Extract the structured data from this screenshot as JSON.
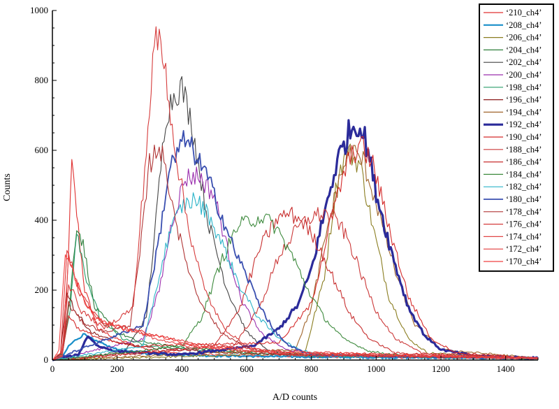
{
  "chart_data": {
    "type": "line",
    "title": "",
    "xlabel": "A/D counts",
    "ylabel": "Counts",
    "xlim": [
      0,
      1500
    ],
    "ylim": [
      0,
      1000
    ],
    "xticks": [
      "0",
      "200",
      "400",
      "600",
      "800",
      "1000",
      "1200",
      "1400"
    ],
    "yticks": [
      "0",
      "200",
      "400",
      "600",
      "800",
      "1000"
    ],
    "grid": false,
    "legend_position": "top-right",
    "series": [
      {
        "name": "‘210_ch4’",
        "color": "#e03030",
        "width": 1.1,
        "points": [
          [
            0,
            0
          ],
          [
            25,
            5
          ],
          [
            40,
            90
          ],
          [
            60,
            560
          ],
          [
            75,
            420
          ],
          [
            100,
            200
          ],
          [
            140,
            90
          ],
          [
            200,
            60
          ],
          [
            260,
            40
          ],
          [
            320,
            25
          ],
          [
            400,
            18
          ],
          [
            600,
            12
          ],
          [
            900,
            8
          ],
          [
            1500,
            5
          ]
        ]
      },
      {
        "name": "‘208_ch4’",
        "color": "#1a8fc9",
        "width": 2.2,
        "points": [
          [
            0,
            0
          ],
          [
            30,
            5
          ],
          [
            50,
            40
          ],
          [
            75,
            60
          ],
          [
            100,
            75
          ],
          [
            130,
            55
          ],
          [
            200,
            30
          ],
          [
            300,
            18
          ],
          [
            500,
            12
          ],
          [
            900,
            8
          ],
          [
            1500,
            5
          ]
        ]
      },
      {
        "name": "‘206_ch4’",
        "color": "#8a7d20",
        "width": 1.1,
        "points": [
          [
            0,
            0
          ],
          [
            780,
            20
          ],
          [
            840,
            240
          ],
          [
            880,
            520
          ],
          [
            910,
            600
          ],
          [
            950,
            560
          ],
          [
            990,
            380
          ],
          [
            1040,
            180
          ],
          [
            1100,
            60
          ],
          [
            1160,
            20
          ],
          [
            1500,
            5
          ]
        ]
      },
      {
        "name": "‘204_ch4’",
        "color": "#2e7d3a",
        "width": 1.1,
        "points": [
          [
            0,
            0
          ],
          [
            30,
            20
          ],
          [
            55,
            180
          ],
          [
            75,
            390
          ],
          [
            95,
            330
          ],
          [
            130,
            150
          ],
          [
            200,
            80
          ],
          [
            260,
            55
          ],
          [
            400,
            35
          ],
          [
            700,
            20
          ],
          [
            1500,
            5
          ]
        ]
      },
      {
        "name": "‘202_ch4’",
        "color": "#444444",
        "width": 1.1,
        "points": [
          [
            0,
            0
          ],
          [
            220,
            20
          ],
          [
            290,
            120
          ],
          [
            320,
            400
          ],
          [
            350,
            700
          ],
          [
            380,
            770
          ],
          [
            400,
            780
          ],
          [
            430,
            680
          ],
          [
            480,
            400
          ],
          [
            540,
            200
          ],
          [
            600,
            80
          ],
          [
            660,
            30
          ],
          [
            750,
            15
          ],
          [
            1500,
            5
          ]
        ]
      },
      {
        "name": "‘200_ch4’",
        "color": "#9b2fae",
        "width": 1.1,
        "points": [
          [
            0,
            0
          ],
          [
            280,
            60
          ],
          [
            330,
            200
          ],
          [
            370,
            400
          ],
          [
            410,
            520
          ],
          [
            450,
            530
          ],
          [
            500,
            470
          ],
          [
            540,
            320
          ],
          [
            580,
            180
          ],
          [
            640,
            80
          ],
          [
            720,
            30
          ],
          [
            850,
            12
          ],
          [
            1500,
            5
          ]
        ]
      },
      {
        "name": "‘198_ch4’",
        "color": "#2a9d6a",
        "width": 1.1,
        "points": [
          [
            0,
            0
          ],
          [
            30,
            15
          ],
          [
            55,
            150
          ],
          [
            75,
            380
          ],
          [
            100,
            250
          ],
          [
            150,
            110
          ],
          [
            220,
            60
          ],
          [
            300,
            40
          ],
          [
            500,
            25
          ],
          [
            800,
            12
          ],
          [
            1500,
            5
          ]
        ]
      },
      {
        "name": "‘196_ch4’",
        "color": "#8b1a1a",
        "width": 1.1,
        "points": [
          [
            0,
            0
          ],
          [
            25,
            20
          ],
          [
            45,
            200
          ],
          [
            70,
            140
          ],
          [
            120,
            80
          ],
          [
            200,
            50
          ],
          [
            300,
            35
          ],
          [
            600,
            18
          ],
          [
            1500,
            5
          ]
        ]
      },
      {
        "name": "‘194_ch4’",
        "color": "#a0642a",
        "width": 1.1,
        "points": [
          [
            0,
            0
          ],
          [
            750,
            30
          ],
          [
            800,
            150
          ],
          [
            850,
            380
          ],
          [
            890,
            530
          ],
          [
            920,
            600
          ],
          [
            960,
            570
          ],
          [
            1000,
            450
          ],
          [
            1060,
            250
          ],
          [
            1120,
            100
          ],
          [
            1200,
            30
          ],
          [
            1500,
            5
          ]
        ]
      },
      {
        "name": "‘192_ch4’",
        "color": "#2b2b9a",
        "width": 3.2,
        "points": [
          [
            0,
            0
          ],
          [
            80,
            15
          ],
          [
            110,
            70
          ],
          [
            140,
            40
          ],
          [
            200,
            25
          ],
          [
            400,
            15
          ],
          [
            620,
            40
          ],
          [
            700,
            90
          ],
          [
            760,
            160
          ],
          [
            800,
            260
          ],
          [
            840,
            420
          ],
          [
            880,
            570
          ],
          [
            920,
            660
          ],
          [
            945,
            680
          ],
          [
            970,
            620
          ],
          [
            1000,
            480
          ],
          [
            1050,
            300
          ],
          [
            1100,
            150
          ],
          [
            1150,
            70
          ],
          [
            1200,
            30
          ],
          [
            1300,
            12
          ],
          [
            1500,
            5
          ]
        ]
      },
      {
        "name": "‘190_ch4’",
        "color": "#d42a2a",
        "width": 1.1,
        "points": [
          [
            0,
            0
          ],
          [
            30,
            10
          ],
          [
            50,
            130
          ],
          [
            80,
            90
          ],
          [
            150,
            60
          ],
          [
            250,
            40
          ],
          [
            700,
            50
          ],
          [
            800,
            160
          ],
          [
            860,
            400
          ],
          [
            910,
            560
          ],
          [
            950,
            620
          ],
          [
            990,
            560
          ],
          [
            1040,
            380
          ],
          [
            1100,
            180
          ],
          [
            1170,
            60
          ],
          [
            1250,
            20
          ],
          [
            1500,
            5
          ]
        ]
      },
      {
        "name": "‘188_ch4’",
        "color": "#cc3a3a",
        "width": 1.1,
        "points": [
          [
            0,
            0
          ],
          [
            560,
            40
          ],
          [
            640,
            150
          ],
          [
            700,
            300
          ],
          [
            760,
            380
          ],
          [
            800,
            410
          ],
          [
            840,
            420
          ],
          [
            880,
            400
          ],
          [
            920,
            330
          ],
          [
            960,
            230
          ],
          [
            1000,
            140
          ],
          [
            1060,
            60
          ],
          [
            1140,
            20
          ],
          [
            1500,
            5
          ]
        ]
      },
      {
        "name": "‘186_ch4’",
        "color": "#c83030",
        "width": 1.1,
        "points": [
          [
            0,
            0
          ],
          [
            500,
            40
          ],
          [
            580,
            150
          ],
          [
            640,
            320
          ],
          [
            690,
            400
          ],
          [
            730,
            420
          ],
          [
            770,
            400
          ],
          [
            820,
            330
          ],
          [
            870,
            230
          ],
          [
            920,
            130
          ],
          [
            980,
            60
          ],
          [
            1060,
            20
          ],
          [
            1500,
            5
          ]
        ]
      },
      {
        "name": "‘184_ch4’",
        "color": "#3d8a3d",
        "width": 1.1,
        "points": [
          [
            0,
            0
          ],
          [
            400,
            40
          ],
          [
            460,
            120
          ],
          [
            520,
            280
          ],
          [
            570,
            380
          ],
          [
            610,
            400
          ],
          [
            650,
            410
          ],
          [
            690,
            380
          ],
          [
            740,
            300
          ],
          [
            790,
            200
          ],
          [
            840,
            120
          ],
          [
            900,
            60
          ],
          [
            980,
            25
          ],
          [
            1100,
            10
          ],
          [
            1500,
            5
          ]
        ]
      },
      {
        "name": "‘182_ch4’",
        "color": "#2ab3c8",
        "width": 1.1,
        "points": [
          [
            0,
            0
          ],
          [
            280,
            40
          ],
          [
            320,
            200
          ],
          [
            360,
            360
          ],
          [
            400,
            440
          ],
          [
            440,
            460
          ],
          [
            480,
            420
          ],
          [
            530,
            320
          ],
          [
            580,
            210
          ],
          [
            630,
            130
          ],
          [
            690,
            70
          ],
          [
            760,
            30
          ],
          [
            850,
            12
          ],
          [
            1500,
            5
          ]
        ]
      },
      {
        "name": "‘180_ch4’",
        "color": "#3a4fb0",
        "width": 1.8,
        "points": [
          [
            0,
            0
          ],
          [
            280,
            100
          ],
          [
            330,
            350
          ],
          [
            360,
            540
          ],
          [
            390,
            600
          ],
          [
            410,
            630
          ],
          [
            440,
            590
          ],
          [
            480,
            520
          ],
          [
            520,
            420
          ],
          [
            560,
            320
          ],
          [
            600,
            240
          ],
          [
            640,
            160
          ],
          [
            680,
            90
          ],
          [
            730,
            40
          ],
          [
            800,
            15
          ],
          [
            1500,
            5
          ]
        ]
      },
      {
        "name": "‘178_ch4’",
        "color": "#b03535",
        "width": 1.1,
        "points": [
          [
            0,
            0
          ],
          [
            30,
            10
          ],
          [
            50,
            160
          ],
          [
            90,
            110
          ],
          [
            160,
            80
          ],
          [
            240,
            100
          ],
          [
            270,
            300
          ],
          [
            300,
            560
          ],
          [
            330,
            620
          ],
          [
            360,
            500
          ],
          [
            400,
            320
          ],
          [
            450,
            180
          ],
          [
            520,
            80
          ],
          [
            600,
            35
          ],
          [
            700,
            15
          ],
          [
            1500,
            5
          ]
        ]
      },
      {
        "name": "‘176_ch4’",
        "color": "#d63c3c",
        "width": 1.1,
        "points": [
          [
            0,
            0
          ],
          [
            30,
            15
          ],
          [
            50,
            220
          ],
          [
            90,
            140
          ],
          [
            160,
            90
          ],
          [
            250,
            150
          ],
          [
            290,
            600
          ],
          [
            315,
            900
          ],
          [
            330,
            920
          ],
          [
            350,
            820
          ],
          [
            380,
            600
          ],
          [
            420,
            380
          ],
          [
            470,
            200
          ],
          [
            530,
            90
          ],
          [
            600,
            40
          ],
          [
            700,
            15
          ],
          [
            1500,
            5
          ]
        ]
      },
      {
        "name": "‘174_ch4’",
        "color": "#e04646",
        "width": 1.1,
        "points": [
          [
            0,
            0
          ],
          [
            30,
            10
          ],
          [
            50,
            300
          ],
          [
            90,
            180
          ],
          [
            160,
            100
          ],
          [
            260,
            80
          ],
          [
            320,
            60
          ],
          [
            420,
            40
          ],
          [
            600,
            25
          ],
          [
            1500,
            5
          ]
        ]
      },
      {
        "name": "‘172_ch4’",
        "color": "#e03a3a",
        "width": 1.1,
        "points": [
          [
            0,
            0
          ],
          [
            25,
            20
          ],
          [
            45,
            310
          ],
          [
            80,
            200
          ],
          [
            150,
            110
          ],
          [
            240,
            90
          ],
          [
            330,
            70
          ],
          [
            450,
            45
          ],
          [
            700,
            25
          ],
          [
            1500,
            5
          ]
        ]
      },
      {
        "name": "‘170_ch4’",
        "color": "#f04040",
        "width": 1.1,
        "points": [
          [
            0,
            0
          ],
          [
            20,
            30
          ],
          [
            40,
            320
          ],
          [
            70,
            230
          ],
          [
            130,
            120
          ],
          [
            220,
            90
          ],
          [
            320,
            70
          ],
          [
            450,
            40
          ],
          [
            700,
            20
          ],
          [
            1500,
            5
          ]
        ]
      }
    ]
  }
}
